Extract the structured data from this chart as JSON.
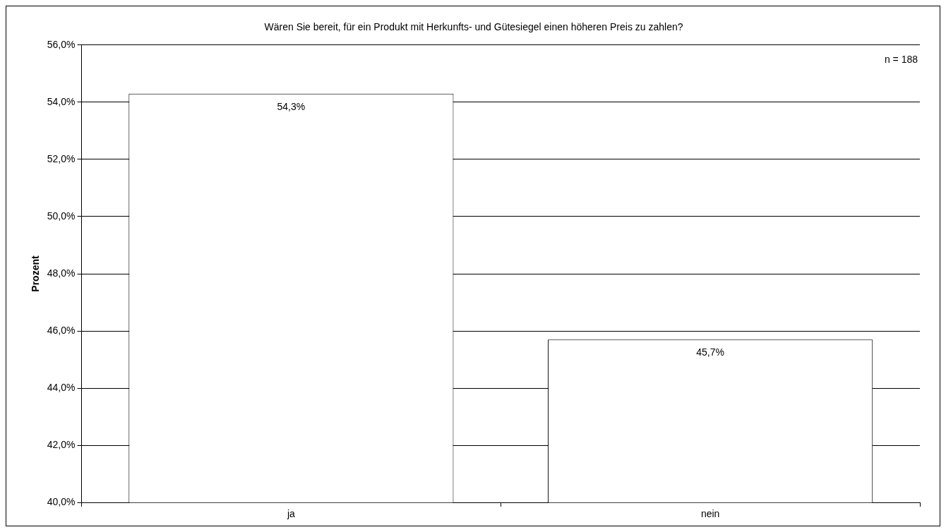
{
  "chart_data": {
    "type": "bar",
    "title": "Wären Sie bereit, für ein Produkt mit Herkunfts- und Gütesiegel einen höheren Preis zu zahlen?",
    "ylabel": "Prozent",
    "categories": [
      "ja",
      "nein"
    ],
    "series": [
      {
        "color": "#ffffff",
        "values": [
          54.3,
          45.7
        ],
        "value_labels": [
          "54,3%",
          "45,7%"
        ]
      }
    ],
    "ylim": [
      40,
      56
    ],
    "yticks": [
      {
        "value": 40,
        "label": "40,0%"
      },
      {
        "value": 42,
        "label": "42,0%"
      },
      {
        "value": 44,
        "label": "44,0%"
      },
      {
        "value": 46,
        "label": "46,0%"
      },
      {
        "value": 48,
        "label": "48,0%"
      },
      {
        "value": 50,
        "label": "50,0%"
      },
      {
        "value": 52,
        "label": "52,0%"
      },
      {
        "value": 54,
        "label": "54,0%"
      },
      {
        "value": 56,
        "label": "56,0%"
      }
    ],
    "grid": "y",
    "legend": false,
    "annotations": [
      "n = 188"
    ]
  }
}
